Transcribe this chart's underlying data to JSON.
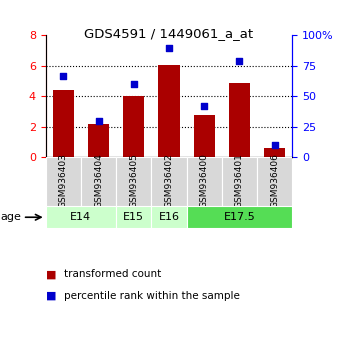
{
  "title": "GDS4591 / 1449061_a_at",
  "samples": [
    "GSM936403",
    "GSM936404",
    "GSM936405",
    "GSM936402",
    "GSM936400",
    "GSM936401",
    "GSM936406"
  ],
  "transformed_count": [
    4.4,
    2.2,
    4.0,
    6.05,
    2.75,
    4.85,
    0.6
  ],
  "percentile_rank": [
    67,
    30,
    60,
    90,
    42,
    79,
    10
  ],
  "bar_color": "#aa0000",
  "marker_color": "#0000cc",
  "left_ylim": [
    0,
    8
  ],
  "right_ylim": [
    0,
    100
  ],
  "left_yticks": [
    0,
    2,
    4,
    6,
    8
  ],
  "right_yticks": [
    0,
    25,
    50,
    75,
    100
  ],
  "right_yticklabels": [
    "0",
    "25",
    "50",
    "75",
    "100%"
  ],
  "bg_color": "#d8d8d8",
  "age_groups": [
    {
      "label": "E14",
      "start": 0,
      "end": 1,
      "color": "#ccffcc"
    },
    {
      "label": "E15",
      "start": 2,
      "end": 2,
      "color": "#ccffcc"
    },
    {
      "label": "E16",
      "start": 3,
      "end": 3,
      "color": "#ccffcc"
    },
    {
      "label": "E17.5",
      "start": 4,
      "end": 6,
      "color": "#55dd55"
    }
  ]
}
